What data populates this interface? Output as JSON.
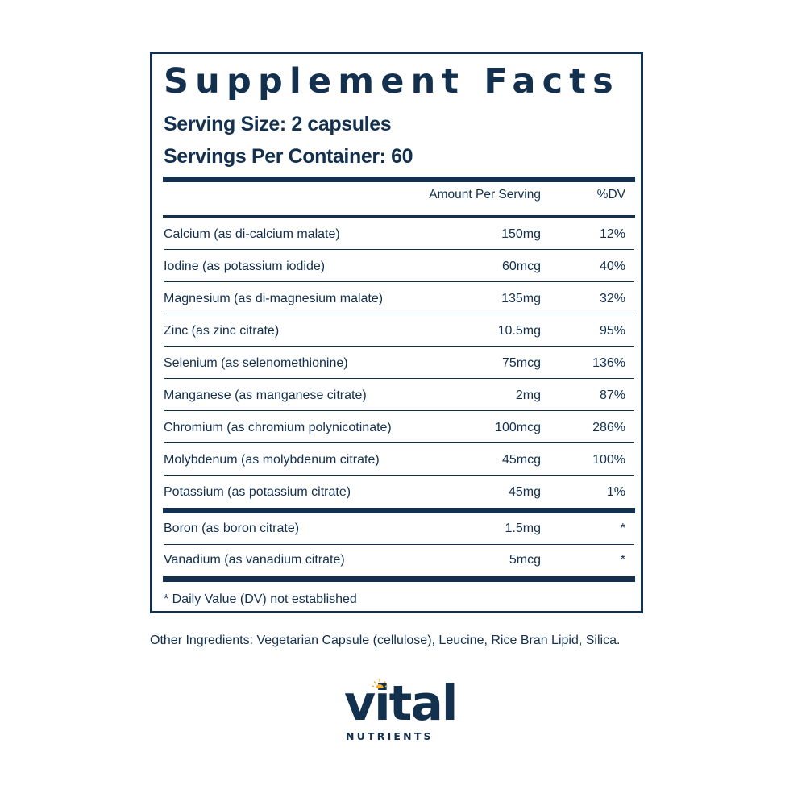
{
  "panel": {
    "title": "Supplement Facts",
    "serving_size": "Serving Size: 2 capsules",
    "servings_per_container": "Servings Per Container: 60",
    "header": {
      "amount": "Amount Per Serving",
      "dv": "%DV"
    },
    "rows": [
      {
        "name": "Calcium (as di-calcium malate)",
        "amount": "150mg",
        "dv": "12%"
      },
      {
        "name": "Iodine (as potassium iodide)",
        "amount": "60mcg",
        "dv": "40%"
      },
      {
        "name": "Magnesium (as di-magnesium malate)",
        "amount": "135mg",
        "dv": "32%"
      },
      {
        "name": "Zinc (as zinc citrate)",
        "amount": "10.5mg",
        "dv": "95%"
      },
      {
        "name": "Selenium (as selenomethionine)",
        "amount": "75mcg",
        "dv": "136%"
      },
      {
        "name": "Manganese (as manganese citrate)",
        "amount": "2mg",
        "dv": "87%"
      },
      {
        "name": "Chromium (as chromium polynicotinate)",
        "amount": "100mcg",
        "dv": "286%"
      },
      {
        "name": "Molybdenum (as molybdenum citrate)",
        "amount": "45mcg",
        "dv": "100%"
      },
      {
        "name": "Potassium (as potassium citrate)",
        "amount": "45mg",
        "dv": "1%"
      }
    ],
    "rows_no_dv": [
      {
        "name": "Boron (as boron citrate)",
        "amount": "1.5mg",
        "dv": "*"
      },
      {
        "name": "Vanadium (as vanadium citrate)",
        "amount": "5mcg",
        "dv": "*"
      }
    ],
    "footnote": "* Daily Value (DV) not established"
  },
  "other_ingredients": "Other Ingredients: Vegetarian Capsule (cellulose), Leucine, Rice Bran Lipid, Silica.",
  "logo": {
    "word": "vital",
    "sub": "NUTRIENTS",
    "icon": "sun-icon"
  },
  "colors": {
    "ink": "#13304f",
    "sun": "#f2b233"
  }
}
